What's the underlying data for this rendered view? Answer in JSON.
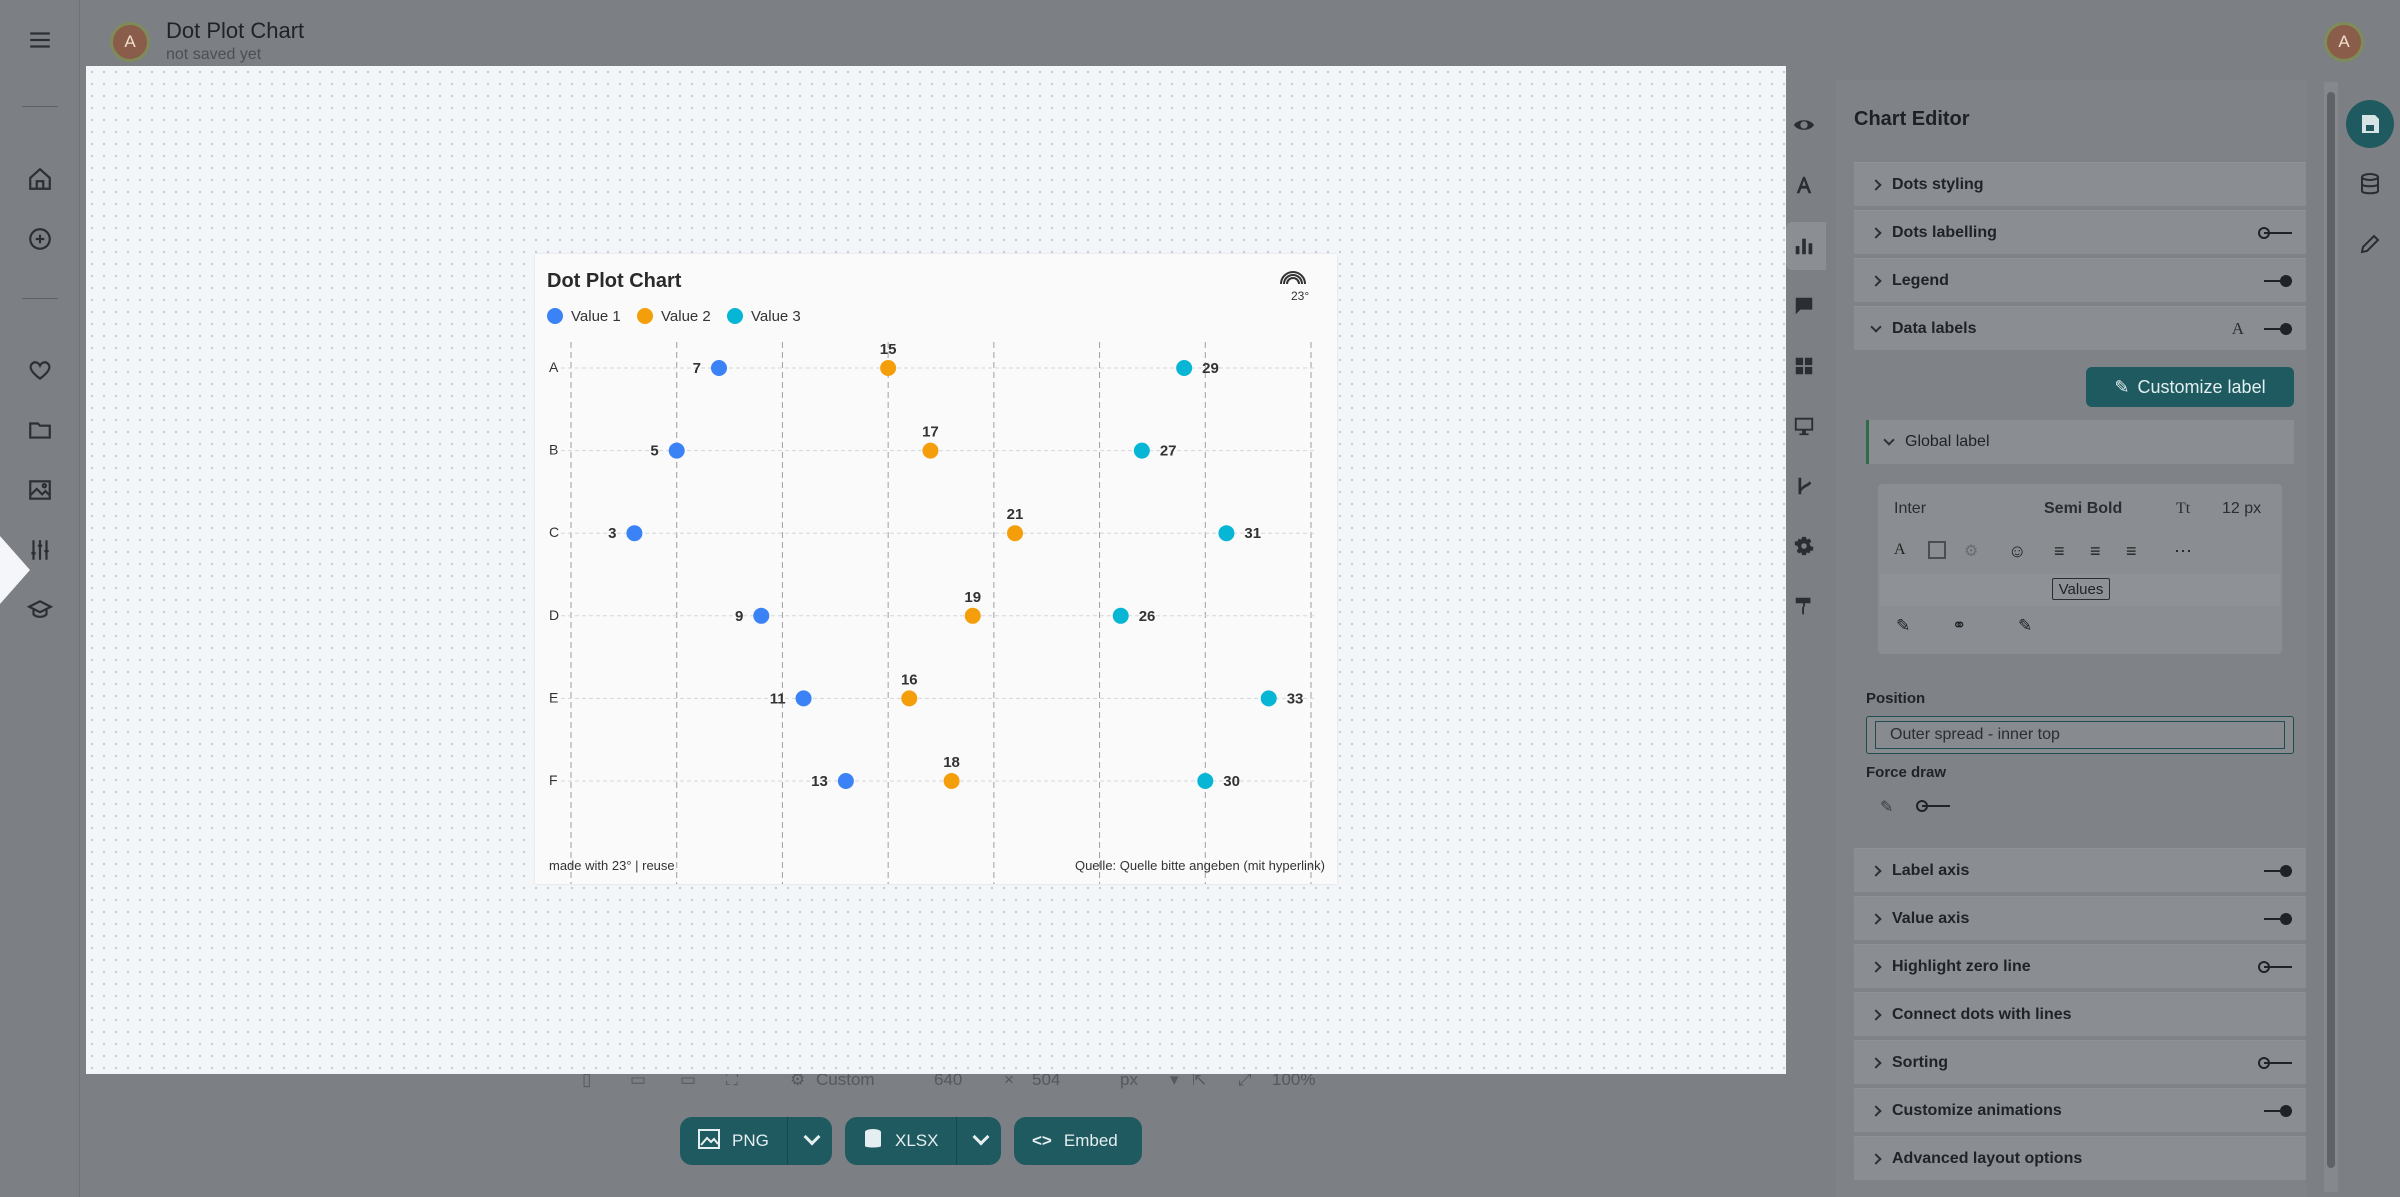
{
  "app": {
    "avatar_letter": "A",
    "doc_title": "Dot Plot Chart",
    "doc_subtitle": "not saved yet"
  },
  "rail": {
    "icons": [
      "menu-icon",
      "home-icon",
      "add-circle-icon",
      "heart-icon",
      "folder-icon",
      "image-icon",
      "sliders-icon",
      "graduation-cap-icon"
    ]
  },
  "chart": {
    "title": "Dot Plot Chart",
    "legend": [
      "Value 1",
      "Value 2",
      "Value 3"
    ],
    "footer_left": "made with 23° | reuse",
    "footer_right": "Quelle: Quelle bitte angeben (mit hyperlink)"
  },
  "chart_data": {
    "type": "scatter",
    "title": "Dot Plot Chart",
    "categories": [
      "A",
      "B",
      "C",
      "D",
      "E",
      "F"
    ],
    "x_ticks": [
      "0,0",
      "5,0",
      "10,0",
      "15,0",
      "20,0",
      "25,0",
      "30,0",
      "35,0"
    ],
    "xlim": [
      0,
      35
    ],
    "grid": true,
    "legend_placement": "top-left",
    "series": [
      {
        "name": "Value 1",
        "color": "#3b82f6",
        "values": [
          7,
          5,
          3,
          9,
          11,
          13
        ]
      },
      {
        "name": "Value 2",
        "color": "#f59e0b",
        "values": [
          15,
          17,
          21,
          19,
          16,
          18
        ]
      },
      {
        "name": "Value 3",
        "color": "#06b6d4",
        "values": [
          29,
          27,
          31,
          26,
          33,
          30
        ]
      }
    ]
  },
  "bottom_bar": {
    "preset": "Custom",
    "width": "640",
    "times": "×",
    "height": "504",
    "unit": "px",
    "zoom": "100%",
    "export_png": "PNG",
    "export_xlsx": "XLSX",
    "embed": "Embed"
  },
  "editor": {
    "title": "Chart Editor",
    "sections": {
      "dots_styling": "Dots styling",
      "dots_labelling": "Dots labelling",
      "legend": "Legend",
      "data_labels": "Data labels",
      "label_axis": "Label axis",
      "value_axis": "Value axis",
      "highlight_zero": "Highlight zero line",
      "connect_dots": "Connect dots with lines",
      "sorting": "Sorting",
      "animations": "Customize animations",
      "advanced": "Advanced layout options"
    },
    "customize_label": "Customize label",
    "global_label": "Global label",
    "font_family": "Inter",
    "font_weight": "Semi Bold",
    "font_size": "12 px",
    "values_chip": "Values",
    "position_label": "Position",
    "position_value": "Outer spread - inner top",
    "force_draw_label": "Force draw",
    "colors": {
      "accent": "#1e5a5f"
    }
  }
}
